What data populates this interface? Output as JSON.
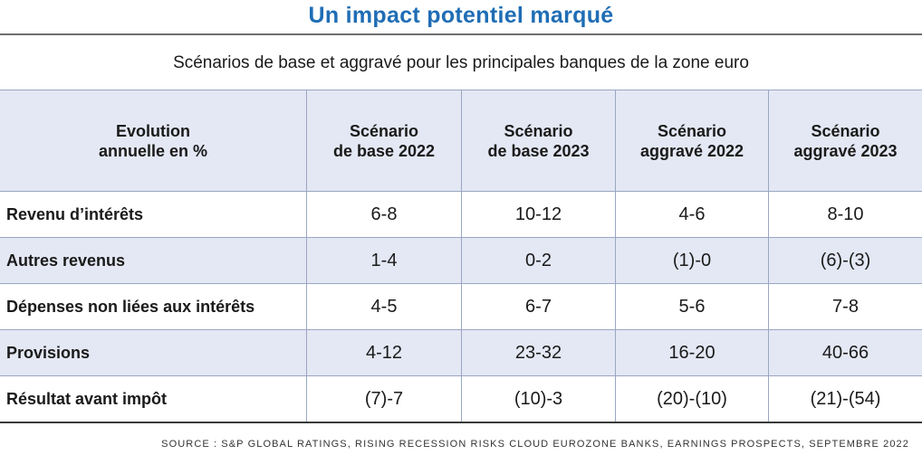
{
  "title": "Un impact potentiel marqué",
  "subtitle": "Scénarios de base et aggravé pour les principales banques de la zone euro",
  "table": {
    "headers": [
      "Evolution\nannuelle en %",
      "Scénario\nde base 2022",
      "Scénario\nde base 2023",
      "Scénario\naggravé 2022",
      "Scénario\naggravé 2023"
    ],
    "rows": [
      {
        "label": "Revenu d’intérêts",
        "values": [
          "6-8",
          "10-12",
          "4-6",
          "8-10"
        ]
      },
      {
        "label": "Autres revenus",
        "values": [
          "1-4",
          "0-2",
          "(1)-0",
          "(6)-(3)"
        ]
      },
      {
        "label": "Dépenses non liées aux intérêts",
        "values": [
          "4-5",
          "6-7",
          "5-6",
          "7-8"
        ]
      },
      {
        "label": "Provisions",
        "values": [
          "4-12",
          "23-32",
          "16-20",
          "40-66"
        ]
      },
      {
        "label": "Résultat avant impôt",
        "values": [
          "(7)-7",
          "(10)-3",
          "(20)-(10)",
          "(21)-(54)"
        ]
      }
    ]
  },
  "source": "SOURCE : S&P GLOBAL RATINGS, RISING RECESSION RISKS CLOUD EUROZONE BANKS, EARNINGS PROSPECTS, SEPTEMBRE 2022",
  "colors": {
    "title": "#1f6db5",
    "header_bg": "#e4e8f4",
    "alt_row_bg": "#e4e8f4",
    "grid": "#9aa6c2"
  }
}
